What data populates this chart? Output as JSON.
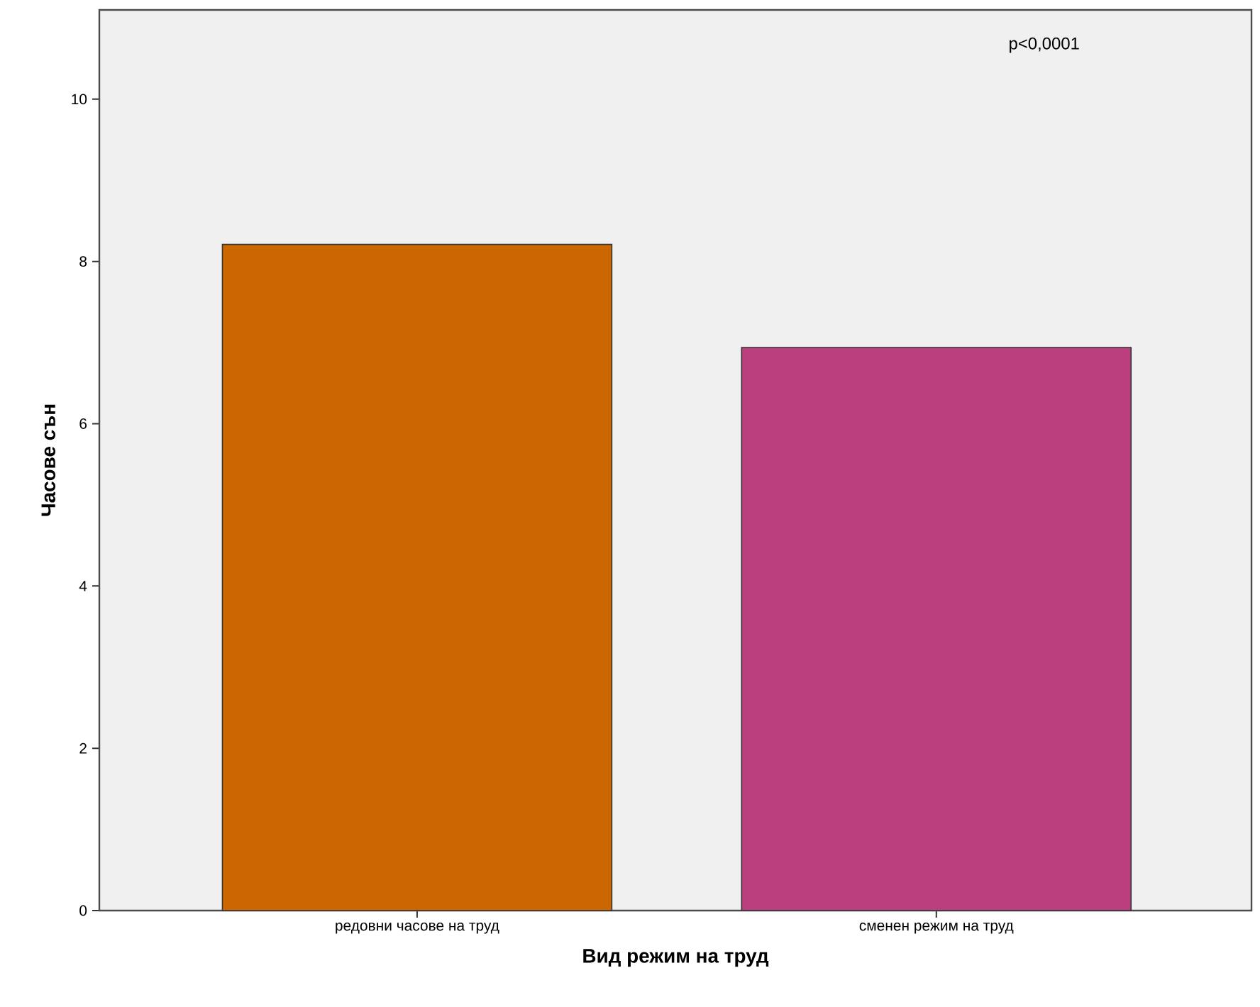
{
  "chart_data": {
    "type": "bar",
    "xlabel": "Вид режим на труд",
    "ylabel": "Часове сън",
    "categories": [
      "редовни часове на труд",
      "сменен режим на труд"
    ],
    "values": [
      8.21,
      6.94
    ],
    "colors": [
      "#cc6600",
      "#bb3f7e"
    ],
    "ylim": [
      0,
      11.1
    ],
    "yticks": [
      0,
      2,
      4,
      6,
      8,
      10
    ],
    "annotations": [
      "p<0,0001"
    ]
  }
}
